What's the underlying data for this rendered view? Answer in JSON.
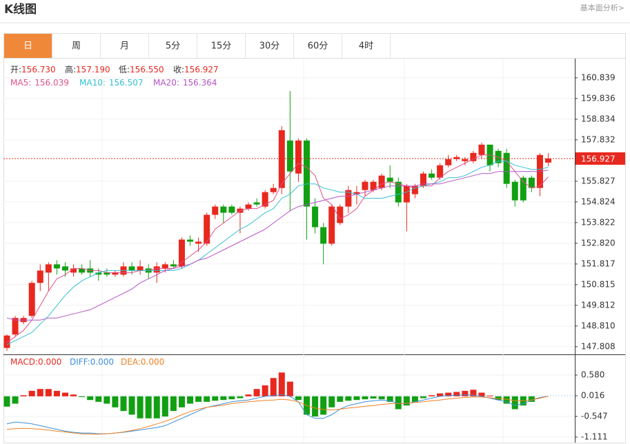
{
  "chart_data": {
    "type": "candlestick",
    "title": "K线图",
    "link": "基本面分析>",
    "tabs": [
      "日",
      "周",
      "月",
      "5分",
      "15分",
      "30分",
      "60分",
      "4时"
    ],
    "active_tab": 0,
    "active_color": "#f0883a",
    "quote": [
      {
        "name": "开:",
        "value": 156.73,
        "label": "156.730"
      },
      {
        "name": "高:",
        "value": 157.19,
        "label": "157.190"
      },
      {
        "name": "低:",
        "value": 156.55,
        "label": "156.550"
      },
      {
        "name": "收:",
        "value": 156.927,
        "label": "156.927"
      }
    ],
    "quote_color": "#e8281e",
    "up_color": "#e8281e",
    "down_color": "#12a012",
    "open": [
      147.75,
      148.4,
      149.0,
      149.3,
      150.9,
      151.4,
      151.8,
      151.7,
      151.4,
      151.6,
      151.6,
      151.4,
      151.4,
      151.3,
      151.3,
      151.7,
      151.5,
      151.6,
      151.4,
      151.6,
      151.8,
      151.7,
      153.0,
      152.8,
      152.8,
      154.2,
      154.6,
      154.6,
      154.3,
      154.5,
      154.8,
      154.6,
      155.3,
      155.5,
      157.8,
      156.2,
      157.8,
      154.6,
      153.6,
      152.8,
      153.8,
      154.6,
      155.2,
      155.4,
      155.4,
      155.5,
      156.0,
      155.8,
      154.8,
      155.2,
      155.6,
      156.2,
      156.0,
      156.6,
      156.9,
      156.8,
      156.8,
      157.1,
      157.6,
      157.3,
      157.2,
      155.8,
      156.0,
      156.0,
      155.5,
      156.73
    ],
    "high": [
      148.4,
      149.3,
      149.3,
      151.0,
      151.8,
      151.9,
      152.0,
      151.9,
      151.8,
      151.8,
      152.0,
      151.6,
      151.6,
      151.5,
      151.9,
      151.9,
      152.0,
      151.8,
      151.9,
      151.9,
      152.0,
      153.1,
      153.2,
      153.1,
      154.3,
      154.7,
      154.7,
      154.7,
      154.6,
      154.8,
      155.0,
      155.4,
      155.7,
      158.5,
      160.2,
      157.9,
      157.9,
      155.0,
      153.8,
      154.7,
      154.7,
      155.6,
      155.6,
      155.9,
      155.9,
      156.2,
      156.6,
      156.0,
      155.7,
      155.7,
      156.3,
      156.4,
      156.7,
      157.1,
      157.1,
      157.0,
      157.3,
      157.7,
      157.6,
      157.4,
      157.4,
      155.9,
      156.1,
      156.1,
      157.2,
      157.19
    ],
    "low": [
      147.6,
      148.3,
      148.9,
      149.2,
      150.5,
      150.5,
      151.3,
      151.2,
      151.2,
      151.3,
      151.2,
      151.0,
      151.2,
      151.2,
      151.2,
      151.3,
      151.3,
      151.1,
      150.9,
      151.4,
      151.6,
      151.6,
      152.7,
      152.4,
      152.7,
      154.0,
      153.8,
      154.2,
      153.3,
      154.4,
      154.6,
      154.5,
      155.2,
      155.2,
      154.4,
      155.8,
      153.0,
      153.3,
      151.8,
      152.7,
      153.7,
      154.3,
      154.7,
      155.1,
      155.3,
      155.4,
      155.5,
      154.6,
      153.4,
      155.0,
      155.5,
      155.9,
      155.9,
      156.5,
      156.8,
      156.6,
      156.7,
      156.9,
      156.3,
      156.5,
      155.5,
      154.6,
      154.8,
      155.3,
      155.1,
      156.55
    ],
    "close": [
      148.35,
      149.2,
      149.2,
      150.9,
      151.5,
      151.8,
      151.6,
      151.5,
      151.6,
      151.4,
      151.4,
      151.3,
      151.3,
      151.4,
      151.7,
      151.5,
      151.7,
      151.4,
      151.7,
      151.8,
      151.7,
      153.0,
      152.9,
      152.9,
      154.2,
      154.6,
      154.3,
      154.3,
      154.5,
      154.7,
      154.7,
      155.3,
      155.5,
      158.3,
      156.3,
      157.8,
      154.6,
      153.6,
      152.8,
      154.6,
      154.6,
      155.4,
      155.3,
      155.8,
      155.8,
      156.1,
      155.8,
      154.8,
      155.6,
      155.6,
      156.2,
      156.0,
      156.6,
      156.9,
      157.0,
      156.9,
      157.2,
      157.6,
      156.6,
      156.7,
      155.7,
      154.9,
      154.9,
      155.5,
      157.1,
      156.927
    ],
    "series": [
      {
        "name": "MA5:",
        "color": "#e0508a",
        "values": [
          148.0,
          148.3,
          148.6,
          149.1,
          149.8,
          150.5,
          151.1,
          151.3,
          151.6,
          151.6,
          151.5,
          151.5,
          151.4,
          151.4,
          151.4,
          151.4,
          151.5,
          151.5,
          151.6,
          151.6,
          151.6,
          151.9,
          152.2,
          152.5,
          152.9,
          153.5,
          153.8,
          154.1,
          154.4,
          154.5,
          154.5,
          154.7,
          154.9,
          155.7,
          156.2,
          156.7,
          156.5,
          156.1,
          155.0,
          154.7,
          154.0,
          154.2,
          154.5,
          155.1,
          155.4,
          155.7,
          155.8,
          155.7,
          155.6,
          155.5,
          155.6,
          155.6,
          156.0,
          156.3,
          156.5,
          156.7,
          156.9,
          157.1,
          157.1,
          157.0,
          156.8,
          156.3,
          155.8,
          155.5,
          155.6,
          156.039
        ]
      },
      {
        "name": "MA10:",
        "color": "#33bfd3",
        "values": [
          147.9,
          148.1,
          148.3,
          148.5,
          148.9,
          149.3,
          149.8,
          150.3,
          150.7,
          151.0,
          151.2,
          151.4,
          151.5,
          151.5,
          151.5,
          151.5,
          151.5,
          151.5,
          151.5,
          151.5,
          151.5,
          151.6,
          151.8,
          152.0,
          152.3,
          152.6,
          152.9,
          153.2,
          153.5,
          153.7,
          154.0,
          154.3,
          154.5,
          155.0,
          155.2,
          155.6,
          155.7,
          155.7,
          155.5,
          155.4,
          155.3,
          155.3,
          155.2,
          155.0,
          155.0,
          155.0,
          155.1,
          155.2,
          155.3,
          155.5,
          155.6,
          155.7,
          155.8,
          156.0,
          156.0,
          156.1,
          156.3,
          156.5,
          156.6,
          156.8,
          156.8,
          156.6,
          156.5,
          156.4,
          156.4,
          156.507
        ]
      },
      {
        "name": "MA20:",
        "color": "#b453c8",
        "values": [
          149.2,
          149.1,
          149.1,
          149.1,
          149.1,
          149.2,
          149.2,
          149.3,
          149.4,
          149.5,
          149.6,
          149.8,
          150.0,
          150.2,
          150.4,
          150.6,
          150.9,
          151.1,
          151.3,
          151.5,
          151.6,
          151.7,
          151.8,
          152.0,
          152.1,
          152.3,
          152.5,
          152.7,
          152.9,
          153.1,
          153.3,
          153.5,
          153.8,
          154.1,
          154.4,
          154.6,
          154.7,
          154.8,
          154.9,
          155.0,
          155.1,
          155.1,
          155.2,
          155.3,
          155.4,
          155.5,
          155.6,
          155.6,
          155.6,
          155.6,
          155.7,
          155.7,
          155.7,
          155.8,
          155.9,
          156.0,
          156.1,
          156.2,
          156.2,
          156.3,
          156.3,
          156.3,
          156.3,
          156.3,
          156.3,
          156.364
        ]
      }
    ],
    "ylim": [
      147.47,
      161.67
    ],
    "yticks": [
      160.839,
      159.836,
      158.834,
      157.832,
      155.827,
      154.824,
      153.822,
      {
        "value": 152.82,
        "label": "152.820"
      },
      151.817,
      150.815,
      149.812,
      {
        "value": 148.81,
        "label": "148.810"
      },
      147.808
    ],
    "current_price": 156.927,
    "current_color": "#e8281e",
    "grid": true,
    "macd": {
      "readout": [
        {
          "name": "MACD:",
          "value": 0,
          "label": "0.000",
          "color": "#e8281e"
        },
        {
          "name": "DIFF:",
          "value": 0,
          "label": "0.000",
          "color": "#3a8fd8"
        },
        {
          "name": "DEA:",
          "value": 0,
          "label": "0.000",
          "color": "#f08020"
        }
      ],
      "ylim": [
        -1.224,
        1.125
      ],
      "yticks": [
        {
          "value": 0.58,
          "label": "0.580"
        },
        0.016,
        -0.547,
        -1.111
      ],
      "histogram": [
        -0.28,
        -0.2,
        0.03,
        0.15,
        0.2,
        0.2,
        0.15,
        0.1,
        0.05,
        -0.02,
        -0.1,
        -0.15,
        -0.2,
        -0.3,
        -0.4,
        -0.5,
        -0.6,
        -0.6,
        -0.6,
        -0.55,
        -0.4,
        -0.3,
        -0.2,
        -0.15,
        -0.15,
        -0.12,
        -0.1,
        -0.08,
        -0.05,
        0.05,
        0.2,
        0.3,
        0.5,
        0.65,
        0.4,
        -0.1,
        -0.5,
        -0.55,
        -0.5,
        -0.3,
        -0.15,
        -0.12,
        -0.1,
        -0.08,
        -0.06,
        -0.08,
        -0.15,
        -0.35,
        -0.25,
        -0.15,
        -0.05,
        0.03,
        0.08,
        0.1,
        0.12,
        0.15,
        0.18,
        0.1,
        0.02,
        -0.1,
        -0.2,
        -0.35,
        -0.25,
        -0.15,
        0.0,
        0
      ],
      "series": [
        {
          "name": "DIFF",
          "color": "#3a8fd8",
          "values": [
            -0.75,
            -0.7,
            -0.72,
            -0.75,
            -0.8,
            -0.85,
            -0.9,
            -0.95,
            -0.98,
            -1.0,
            -1.0,
            -1.02,
            -1.02,
            -1.0,
            -0.98,
            -0.95,
            -0.92,
            -0.88,
            -0.85,
            -0.8,
            -0.7,
            -0.6,
            -0.5,
            -0.4,
            -0.3,
            -0.25,
            -0.2,
            -0.15,
            -0.12,
            -0.1,
            -0.05,
            0.0,
            0.02,
            0.05,
            0.0,
            -0.15,
            -0.5,
            -0.6,
            -0.6,
            -0.5,
            -0.35,
            -0.25,
            -0.2,
            -0.15,
            -0.12,
            -0.1,
            -0.12,
            -0.2,
            -0.2,
            -0.15,
            -0.1,
            -0.05,
            0.0,
            0.02,
            0.03,
            0.04,
            0.03,
            0.0,
            -0.05,
            -0.1,
            -0.15,
            -0.25,
            -0.2,
            -0.1,
            -0.03,
            0.0
          ]
        },
        {
          "name": "DEA",
          "color": "#f08020",
          "values": [
            -0.9,
            -0.88,
            -0.87,
            -0.88,
            -0.9,
            -0.92,
            -0.95,
            -0.97,
            -1.0,
            -1.02,
            -1.03,
            -1.03,
            -1.02,
            -1.0,
            -0.97,
            -0.93,
            -0.88,
            -0.82,
            -0.75,
            -0.68,
            -0.6,
            -0.5,
            -0.42,
            -0.35,
            -0.3,
            -0.27,
            -0.24,
            -0.2,
            -0.17,
            -0.15,
            -0.13,
            -0.11,
            -0.1,
            -0.08,
            -0.1,
            -0.15,
            -0.25,
            -0.32,
            -0.36,
            -0.37,
            -0.35,
            -0.32,
            -0.3,
            -0.27,
            -0.25,
            -0.22,
            -0.2,
            -0.2,
            -0.19,
            -0.17,
            -0.15,
            -0.12,
            -0.1,
            -0.07,
            -0.05,
            -0.03,
            -0.02,
            -0.02,
            -0.04,
            -0.06,
            -0.08,
            -0.12,
            -0.12,
            -0.1,
            -0.05,
            0.0
          ]
        }
      ]
    }
  }
}
